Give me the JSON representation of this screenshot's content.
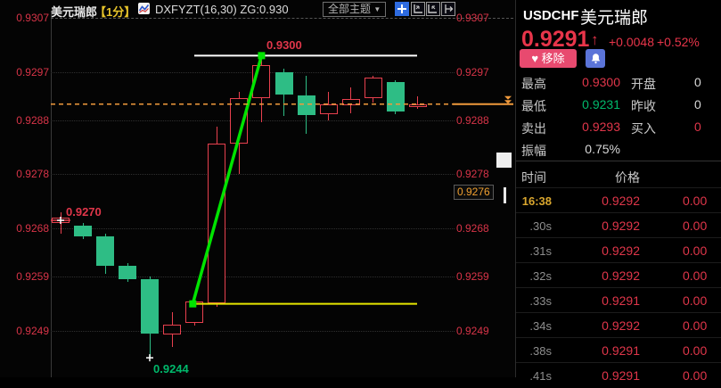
{
  "toolbar": {
    "symbol_name": "美元瑞郎",
    "interval": "【1分】",
    "indicator": "DXFYZT(16,30) ZG:0.930",
    "theme_selector": "全部主题",
    "dropdown_arrow": "▼",
    "icons": [
      "pan-crosshair-icon",
      "scale-left-axis-icon",
      "scale-right-axis-icon",
      "shift-right-icon"
    ]
  },
  "chart": {
    "y_axis_labels": [
      "0.9307",
      "0.9297",
      "0.9288",
      "0.9278",
      "0.9268",
      "0.9259",
      "0.9249"
    ],
    "marker_label": "0.9276",
    "annotations": {
      "high_label": "0.9300",
      "left_label": "0.9270",
      "low_label": "0.9244"
    }
  },
  "chart_data": {
    "type": "candlestick",
    "symbol": "USDCHF",
    "interval_label": "1分",
    "up_color_style": "red-hollow",
    "down_color_style": "green-filled",
    "y_axis_ticks": [
      0.9307,
      0.9297,
      0.9288,
      0.9278,
      0.9268,
      0.9259,
      0.9249
    ],
    "ylim": [
      0.924,
      0.931
    ],
    "marked_level": 0.9276,
    "current_price": 0.9291,
    "resistance_line": 0.93,
    "support_line": 0.9254,
    "trend_arrow": {
      "from_index": 6,
      "from_price": 0.9254,
      "to_index": 9,
      "to_price": 0.93
    },
    "labeled_points": {
      "first_open": 0.927,
      "session_low": 0.9244,
      "session_high": 0.93
    },
    "candles": [
      {
        "o": 0.9269,
        "h": 0.9271,
        "l": 0.9267,
        "c": 0.927
      },
      {
        "o": 0.92685,
        "h": 0.9269,
        "l": 0.9266,
        "c": 0.92665
      },
      {
        "o": 0.92665,
        "h": 0.9267,
        "l": 0.92595,
        "c": 0.9261
      },
      {
        "o": 0.9261,
        "h": 0.92615,
        "l": 0.9258,
        "c": 0.92585
      },
      {
        "o": 0.92585,
        "h": 0.9259,
        "l": 0.9244,
        "c": 0.92485
      },
      {
        "o": 0.92483,
        "h": 0.92525,
        "l": 0.9246,
        "c": 0.92501
      },
      {
        "o": 0.92505,
        "h": 0.9255,
        "l": 0.925,
        "c": 0.92545
      },
      {
        "o": 0.92541,
        "h": 0.92868,
        "l": 0.92535,
        "c": 0.92837
      },
      {
        "o": 0.92837,
        "h": 0.92933,
        "l": 0.9278,
        "c": 0.92921
      },
      {
        "o": 0.92921,
        "h": 0.93,
        "l": 0.92877,
        "c": 0.92982
      },
      {
        "o": 0.92969,
        "h": 0.92976,
        "l": 0.92888,
        "c": 0.92928
      },
      {
        "o": 0.92926,
        "h": 0.92963,
        "l": 0.92855,
        "c": 0.9289
      },
      {
        "o": 0.92892,
        "h": 0.92933,
        "l": 0.9288,
        "c": 0.9291
      },
      {
        "o": 0.92908,
        "h": 0.92941,
        "l": 0.92893,
        "c": 0.9292
      },
      {
        "o": 0.92921,
        "h": 0.92963,
        "l": 0.92913,
        "c": 0.92959
      },
      {
        "o": 0.92951,
        "h": 0.92954,
        "l": 0.92891,
        "c": 0.92896
      },
      {
        "o": 0.92905,
        "h": 0.92925,
        "l": 0.92901,
        "c": 0.9291
      }
    ]
  },
  "quote_panel": {
    "symbol": "USDCHF",
    "name": "美元瑞郎",
    "price": "0.9291",
    "direction_arrow": "↑",
    "change": "+0.0048",
    "change_pct": "+0.52%",
    "remove_button": "移除",
    "heart_icon": "♥",
    "stats": [
      {
        "label": "最高",
        "value": "0.9300",
        "vcolor": "red",
        "label2": "开盘",
        "value2": "0",
        "v2color": "white"
      },
      {
        "label": "最低",
        "value": "0.9231",
        "vcolor": "green",
        "label2": "昨收",
        "value2": "0",
        "v2color": "white"
      },
      {
        "label": "卖出",
        "value": "0.9293",
        "vcolor": "red",
        "label2": "买入",
        "value2": "0",
        "v2color": "red"
      },
      {
        "label": "振幅",
        "value": "0.75%",
        "vcolor": "white"
      }
    ],
    "table": {
      "header": {
        "time": "时间",
        "price": "价格"
      },
      "rows": [
        {
          "time": "16:38",
          "price": "0.9292",
          "change": "0.00",
          "highlight": true
        },
        {
          "time": ".30s",
          "price": "0.9292",
          "change": "0.00"
        },
        {
          "time": ".31s",
          "price": "0.9292",
          "change": "0.00"
        },
        {
          "time": ".32s",
          "price": "0.9292",
          "change": "0.00"
        },
        {
          "time": ".33s",
          "price": "0.9291",
          "change": "0.00"
        },
        {
          "time": ".34s",
          "price": "0.9292",
          "change": "0.00"
        },
        {
          "time": ".38s",
          "price": "0.9291",
          "change": "0.00"
        },
        {
          "time": ".41s",
          "price": "0.9291",
          "change": "0.00"
        }
      ]
    }
  },
  "colors": {
    "up": "#e8404e",
    "down": "#2ebd85",
    "up_text": "#e0364a",
    "down_text": "#00b86b",
    "neutral_text": "#d8d8d8",
    "time_highlight": "#d9a62e",
    "time_dim": "#8e8e8e",
    "price_line": "#f09a3c",
    "trend_line_yellow": "#e6e600",
    "arrow_green": "#00e400",
    "resistance_white": "#ffffff",
    "axis_text": "#d83448"
  }
}
